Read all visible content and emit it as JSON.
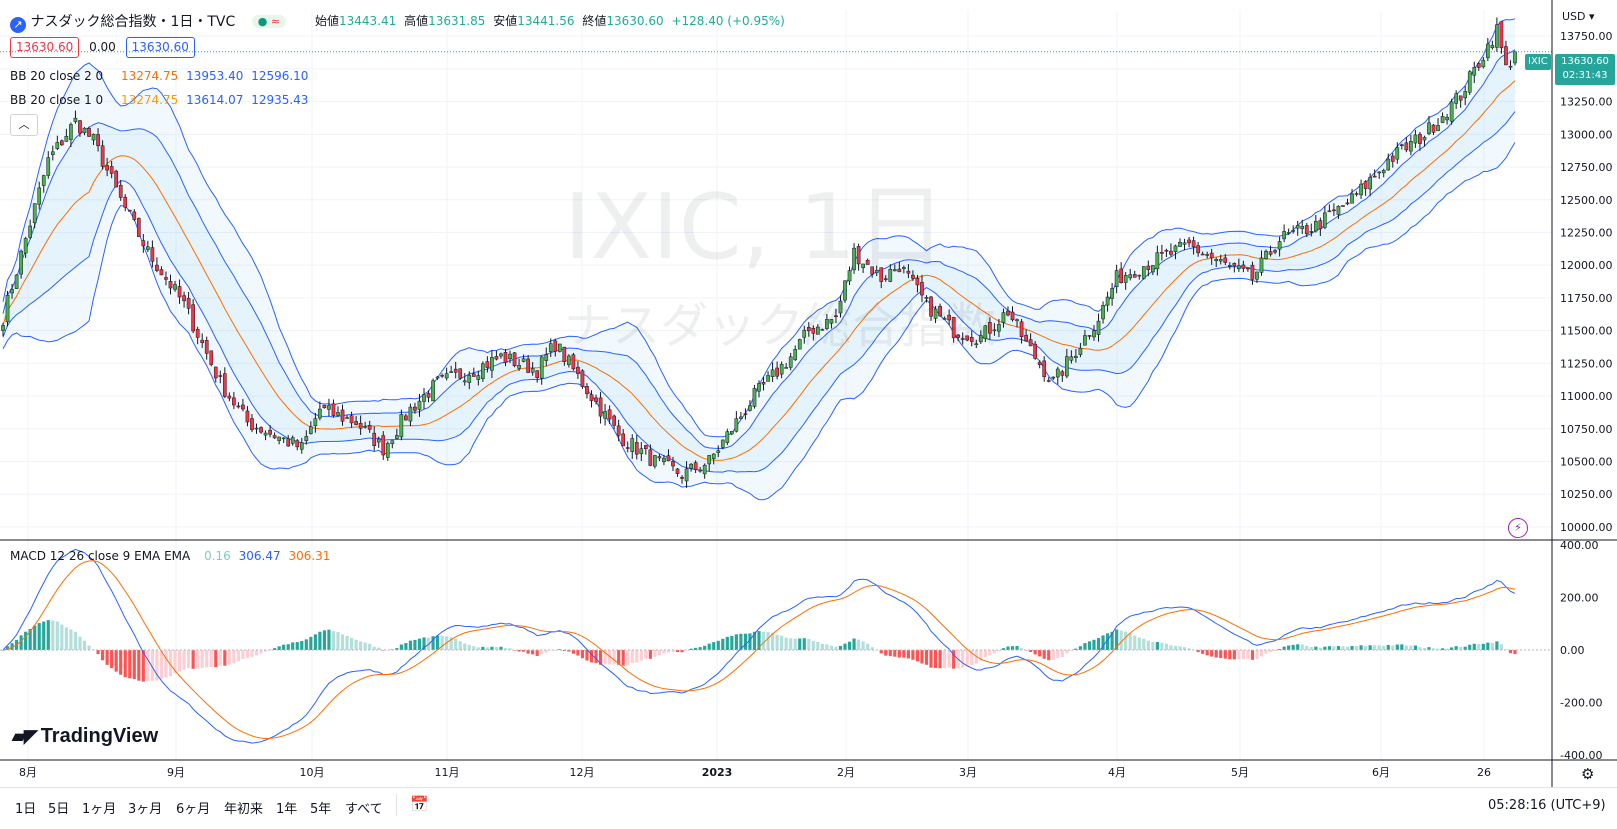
{
  "header": {
    "title": "ナスダック総合指数・1日・TVC",
    "open_label": "始値",
    "open": "13443.41",
    "high_label": "高値",
    "high": "13631.85",
    "low_label": "安値",
    "low": "13441.56",
    "close_label": "終値",
    "close": "13630.60",
    "change": "+128.40 (+0.95%)",
    "sell_price": "13630.60",
    "spread": "0.00",
    "buy_price": "13630.60",
    "collapse_icon": "chevron-up-icon"
  },
  "indicators": {
    "bb2": {
      "label": "BB 20 close 2 0",
      "basis": "13274.75",
      "upper": "13953.40",
      "lower": "12596.10"
    },
    "bb1": {
      "label": "BB 20 close 1 0",
      "basis": "13274.75",
      "upper": "13614.07",
      "lower": "12935.43"
    },
    "macd": {
      "label": "MACD 12 26 close 9 EMA EMA",
      "hist": "0.16",
      "macd": "306.47",
      "signal": "306.31"
    }
  },
  "watermark": {
    "symbol": "IXIC, 1日",
    "name": "ナスダック総合指数"
  },
  "price_axis": {
    "currency": "USD",
    "ticks": [
      "13750.00",
      "13500.00",
      "13250.00",
      "13000.00",
      "12750.00",
      "12500.00",
      "12250.00",
      "12000.00",
      "11750.00",
      "11500.00",
      "11250.00",
      "11000.00",
      "10750.00",
      "10500.00",
      "10250.00",
      "10000.00"
    ],
    "last_label": "IXIC",
    "last_price": "13630.60",
    "countdown": "02:31:43"
  },
  "macd_axis": {
    "ticks": [
      "400.00",
      "200.00",
      "0.00",
      "-200.00",
      "-400.00"
    ]
  },
  "time_axis": {
    "labels": [
      "8月",
      "9月",
      "10月",
      "11月",
      "12月",
      "2023",
      "2月",
      "3月",
      "4月",
      "5月",
      "6月",
      "26"
    ]
  },
  "logo": "TradingView",
  "timeframes": [
    "1日",
    "5日",
    "1ヶ月",
    "3ヶ月",
    "6ヶ月",
    "年初来",
    "1年",
    "5年",
    "すべて"
  ],
  "footer": {
    "time": "05:28:16 (UTC+9)"
  },
  "colors": {
    "up": "#26a69a",
    "down": "#ef5350",
    "candle_up": "#4caf50",
    "candle_down": "#f23645",
    "bb_outer": "#2962ff",
    "basis": "#ff6d00",
    "macd_line": "#2962ff",
    "signal_line": "#ff6d00",
    "hist_up_strong": "#26a69a",
    "hist_up_weak": "#b2dfdb",
    "hist_down_strong": "#ff5252",
    "hist_down_weak": "#ffcdd2"
  },
  "chart_data": {
    "type": "candlestick",
    "title": "ナスダック総合指数・1日・TVC",
    "symbol": "IXIC",
    "ylim": [
      9900,
      13950
    ],
    "x_labels": [
      "8月",
      "9月",
      "10月",
      "11月",
      "12月",
      "2023",
      "2月",
      "3月",
      "4月",
      "5月",
      "6月",
      "26"
    ],
    "series": [
      {
        "name": "close",
        "anchors": [
          [
            0,
            11600
          ],
          [
            5,
            12200
          ],
          [
            10,
            12800
          ],
          [
            16,
            13100
          ],
          [
            20,
            12950
          ],
          [
            26,
            12500
          ],
          [
            32,
            12100
          ],
          [
            40,
            11700
          ],
          [
            48,
            11100
          ],
          [
            54,
            10800
          ],
          [
            60,
            10700
          ],
          [
            66,
            10600
          ],
          [
            70,
            10900
          ],
          [
            78,
            10800
          ],
          [
            84,
            10600
          ],
          [
            90,
            10900
          ],
          [
            96,
            11100
          ],
          [
            104,
            11200
          ],
          [
            110,
            11300
          ],
          [
            118,
            11200
          ],
          [
            122,
            11400
          ],
          [
            126,
            11200
          ],
          [
            130,
            11000
          ],
          [
            136,
            10700
          ],
          [
            144,
            10500
          ],
          [
            150,
            10400
          ],
          [
            156,
            10500
          ],
          [
            160,
            10700
          ],
          [
            166,
            11000
          ],
          [
            174,
            11300
          ],
          [
            178,
            11500
          ],
          [
            184,
            11600
          ],
          [
            188,
            12100
          ],
          [
            194,
            11900
          ],
          [
            198,
            12000
          ],
          [
            204,
            11700
          ],
          [
            210,
            11500
          ],
          [
            216,
            11450
          ],
          [
            222,
            11650
          ],
          [
            226,
            11400
          ],
          [
            232,
            11100
          ],
          [
            236,
            11300
          ],
          [
            242,
            11600
          ],
          [
            246,
            11900
          ],
          [
            252,
            12000
          ],
          [
            262,
            12150
          ],
          [
            270,
            12000
          ],
          [
            276,
            11900
          ],
          [
            282,
            12200
          ],
          [
            290,
            12300
          ],
          [
            298,
            12500
          ],
          [
            306,
            12800
          ],
          [
            314,
            13000
          ],
          [
            322,
            13300
          ],
          [
            330,
            13800
          ],
          [
            332,
            13500
          ],
          [
            334,
            13630.6
          ]
        ]
      }
    ],
    "bollinger_20_2": {
      "basis_last": 13274.75,
      "upper_last": 13953.4,
      "lower_last": 12596.1
    },
    "bollinger_20_1": {
      "basis_last": 13274.75,
      "upper_last": 13614.07,
      "lower_last": 12935.43
    },
    "macd": {
      "ylim": [
        -420,
        420
      ],
      "macd_last": 306.47,
      "signal_last": 306.31,
      "hist_last": 0.16
    }
  }
}
